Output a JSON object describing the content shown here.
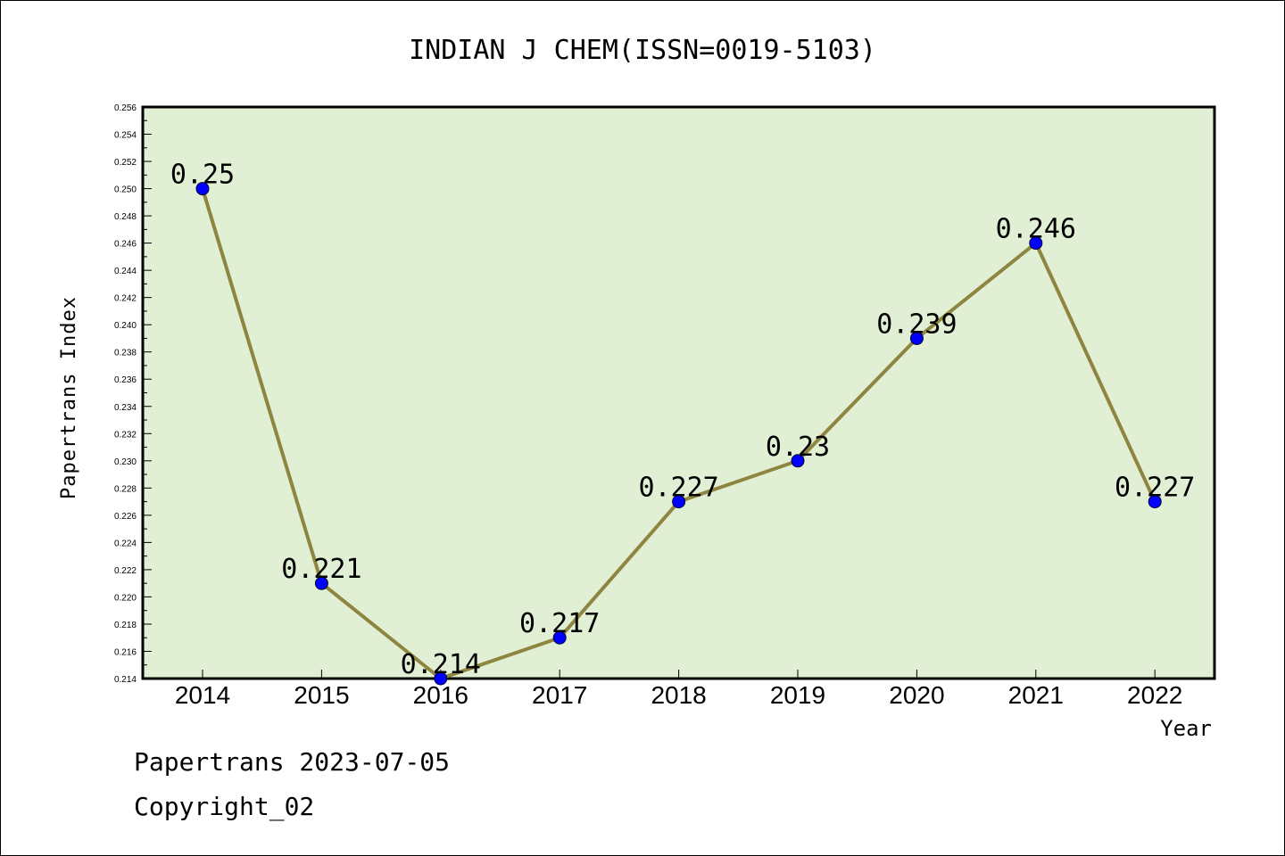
{
  "chart_data": {
    "type": "line",
    "title": "INDIAN J CHEM(ISSN=0019-5103)",
    "xlabel": "Year",
    "ylabel": "Papertrans Index",
    "categories": [
      "2014",
      "2015",
      "2016",
      "2017",
      "2018",
      "2019",
      "2020",
      "2021",
      "2022"
    ],
    "series": [
      {
        "values": [
          0.25,
          0.221,
          0.214,
          0.217,
          0.227,
          0.23,
          0.239,
          0.246,
          0.227
        ],
        "data_labels": [
          "0.25",
          "0.221",
          "0.214",
          "0.217",
          "0.227",
          "0.23",
          "0.239",
          "0.246",
          "0.227"
        ]
      }
    ],
    "ylim": [
      0.214,
      0.256
    ],
    "yticks": [
      "0.214",
      "0.216",
      "0.218",
      "0.220",
      "0.222",
      "0.224",
      "0.226",
      "0.228",
      "0.230",
      "0.232",
      "0.234",
      "0.236",
      "0.238",
      "0.240",
      "0.242",
      "0.244",
      "0.246",
      "0.248",
      "0.250",
      "0.252",
      "0.254",
      "0.256"
    ],
    "ytick_values": [
      0.214,
      0.216,
      0.218,
      0.22,
      0.222,
      0.224,
      0.226,
      0.228,
      0.23,
      0.232,
      0.234,
      0.236,
      0.238,
      0.24,
      0.242,
      0.244,
      0.246,
      0.248,
      0.25,
      0.252,
      0.254,
      0.256
    ],
    "grid": false,
    "legend": "none"
  },
  "footer": {
    "line1": "Papertrans 2023-07-05",
    "line2": "Copyright_02"
  },
  "colors": {
    "plot_background": "#e1efd5",
    "line": "#8e8540",
    "marker": "#0000ff",
    "axis": "#000000"
  }
}
